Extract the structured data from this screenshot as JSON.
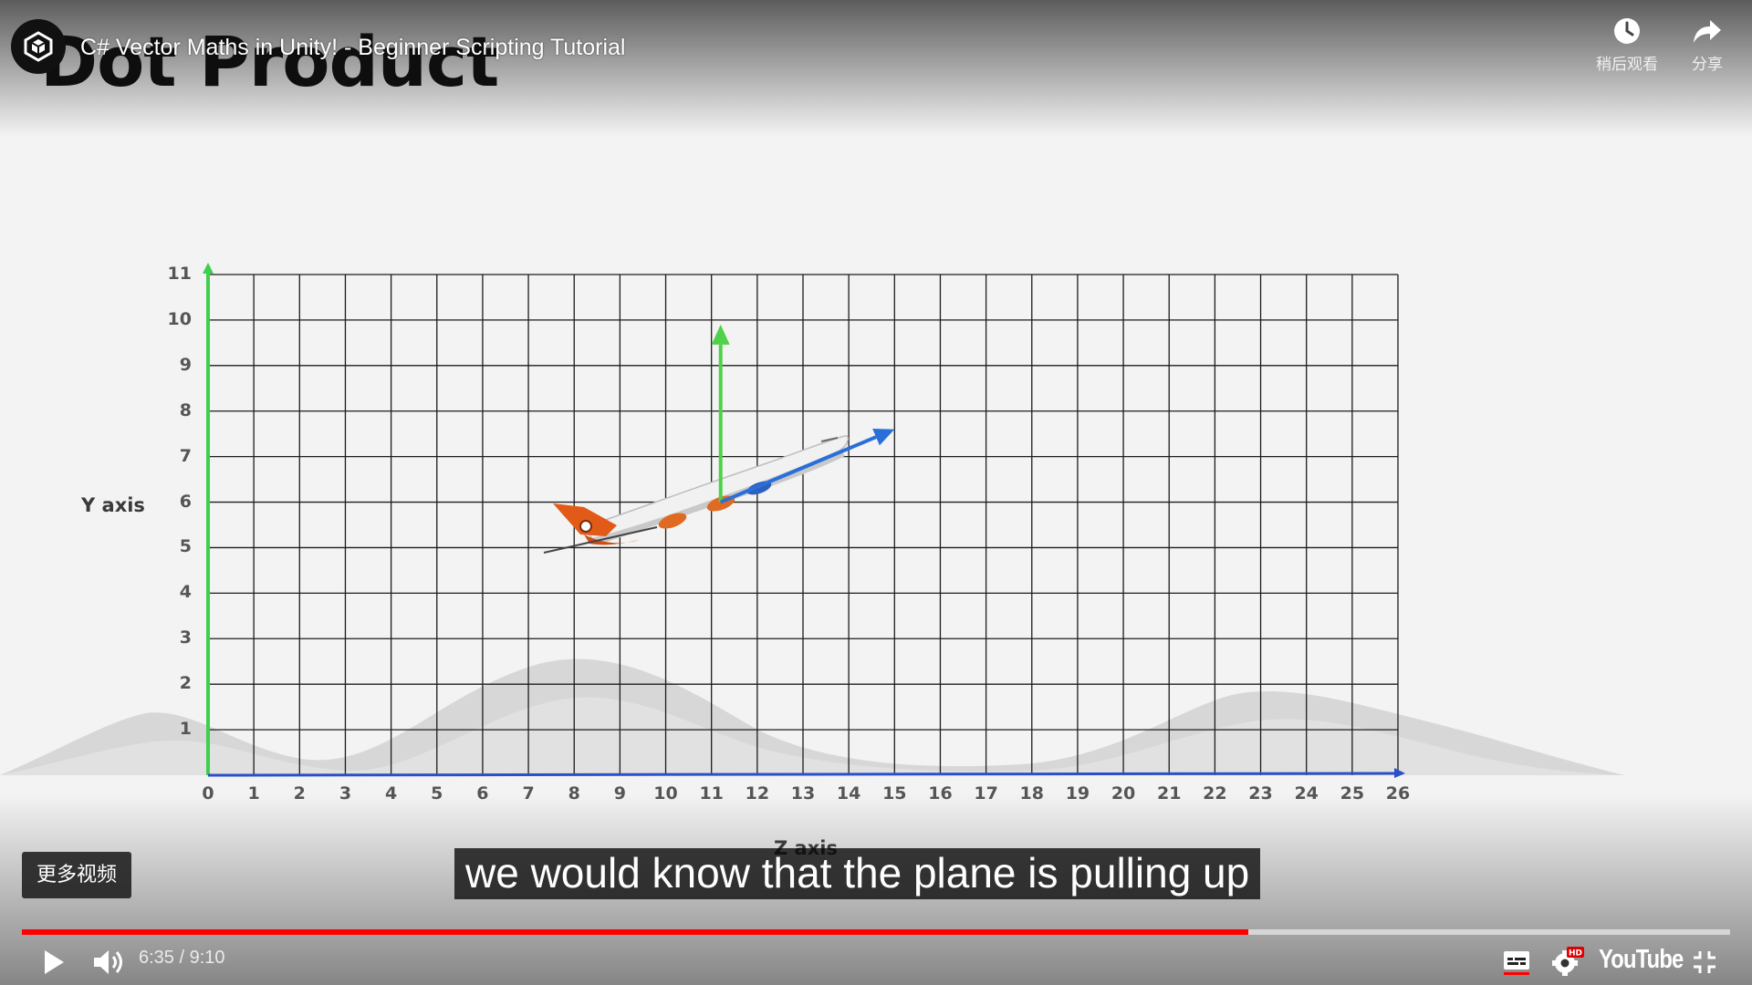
{
  "header": {
    "channel_logo": "unity-logo-icon",
    "video_title": "C# Vector Maths in Unity! - Beginner Scripting Tutorial",
    "watch_later_label": "稍后观看",
    "share_label": "分享"
  },
  "slide": {
    "title": "Dot Product",
    "y_axis_label": "Y axis",
    "z_axis_label": "Z axis"
  },
  "chart_data": {
    "type": "scatter",
    "title": "Dot Product",
    "xlabel": "Z axis",
    "ylabel": "Y axis",
    "xlim": [
      0,
      26
    ],
    "ylim": [
      0,
      11
    ],
    "x_ticks": [
      "0",
      "1",
      "2",
      "3",
      "4",
      "5",
      "6",
      "7",
      "8",
      "9",
      "10",
      "11",
      "12",
      "13",
      "14",
      "15",
      "16",
      "17",
      "18",
      "19",
      "20",
      "21",
      "22",
      "23",
      "24",
      "25",
      "26"
    ],
    "y_ticks": [
      "1",
      "2",
      "3",
      "4",
      "5",
      "6",
      "7",
      "8",
      "9",
      "10",
      "11"
    ],
    "grid": true,
    "vectors": [
      {
        "color": "#4fd14a",
        "from": [
          11.2,
          6.0
        ],
        "to": [
          11.2,
          9.9
        ]
      },
      {
        "color": "#2a6fd9",
        "from": [
          11.2,
          6.0
        ],
        "to": [
          15.0,
          7.6
        ]
      }
    ],
    "colors": {
      "y_axis": "#3ecf4f",
      "z_axis": "#2a4fc8",
      "grid": "#1c1c1c"
    }
  },
  "overlay": {
    "more_videos_label": "更多视频",
    "caption": "we would know that the plane is pulling up"
  },
  "player": {
    "current_time": "6:35",
    "duration": "9:10",
    "time_display": "6:35 / 9:10",
    "progress": 0.718,
    "play_icon": "play-icon",
    "volume_icon": "volume-icon",
    "subtitles_icon": "subtitles-icon",
    "settings_icon": "settings-icon",
    "settings_badge": "HD",
    "youtube_logo": "YouTube",
    "exit_fullscreen_icon": "exit-fullscreen-icon",
    "accent_color": "#ff0000"
  }
}
